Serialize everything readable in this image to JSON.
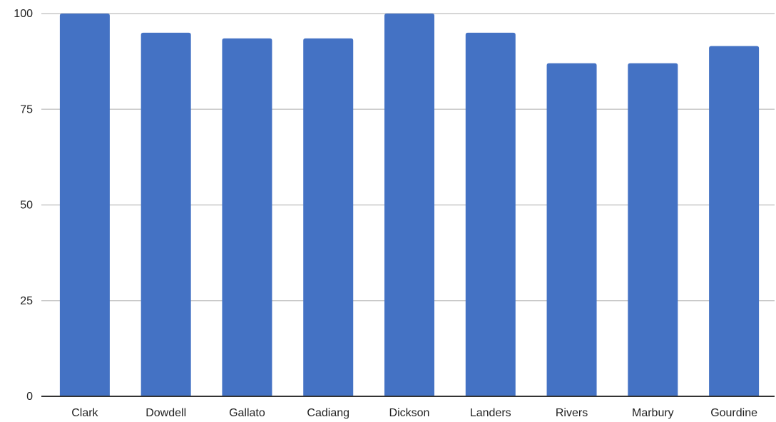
{
  "chart_data": {
    "type": "bar",
    "categories": [
      "Clark",
      "Dowdell",
      "Gallato",
      "Cadiang",
      "Dickson",
      "Landers",
      "Rivers",
      "Marbury",
      "Gourdine"
    ],
    "series": [
      {
        "values": [
          100,
          95,
          93.5,
          93.5,
          100,
          95,
          87,
          87,
          91.5
        ]
      }
    ],
    "ylim": [
      0,
      100
    ],
    "yticks": [
      0,
      25,
      50,
      75,
      100
    ],
    "title": "",
    "xlabel": "",
    "ylabel": "",
    "grid": true,
    "legend": "none",
    "colors": {
      "bar": "#4472c4",
      "grid": "#c8c8c8",
      "axis": "#333333",
      "text": "#222222"
    }
  }
}
